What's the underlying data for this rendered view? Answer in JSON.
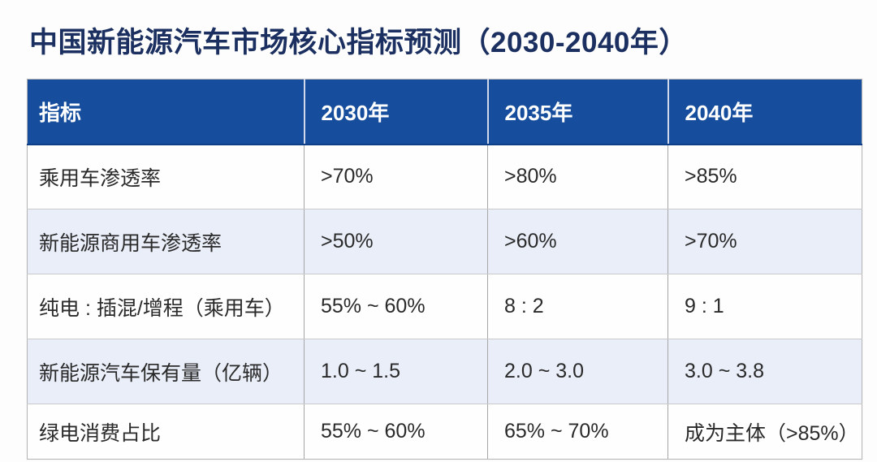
{
  "title": "中国新能源汽车市场核心指标预测（2030-2040年）",
  "table": {
    "columns": [
      "指标",
      "2030年",
      "2035年",
      "2040年"
    ],
    "rows": [
      [
        "乘用车渗透率",
        ">70%",
        ">80%",
        ">85%"
      ],
      [
        "新能源商用车渗透率",
        ">50%",
        ">60%",
        ">70%"
      ],
      [
        "纯电 : 插混/增程（乘用车）",
        "55% ~ 60%",
        "8 : 2",
        "9 : 1"
      ],
      [
        "新能源汽车保有量（亿辆）",
        "1.0 ~ 1.5",
        "2.0 ~ 3.0",
        "3.0 ~ 3.8"
      ],
      [
        "绿电消费占比",
        "55% ~ 60%",
        "65% ~ 70%",
        "成为主体（>85%）"
      ]
    ]
  },
  "colors": {
    "header_bg": "#164e9d",
    "header_text": "#ffffff",
    "stripe_bg": "#e9eef8",
    "title_color": "#1b3060",
    "cell_text": "#2a2a2a"
  }
}
